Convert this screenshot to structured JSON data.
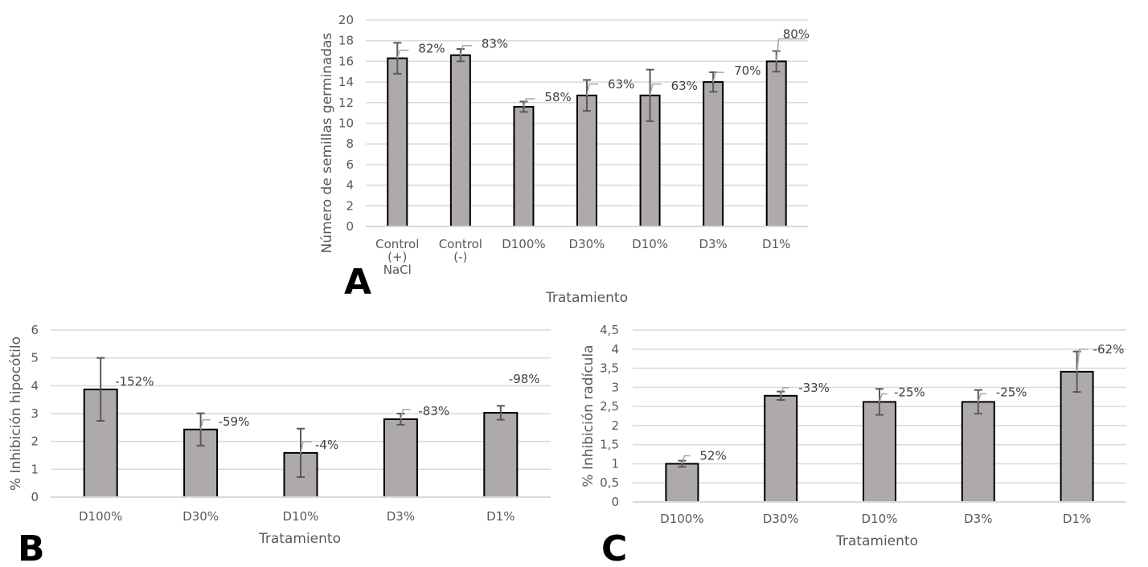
{
  "chart_data": [
    {
      "panel": "A",
      "type": "bar",
      "title": "",
      "xlabel": "Tratamiento",
      "ylabel": "Número de semillas germinadas",
      "categories": [
        [
          "Control",
          "(+)",
          "NaCl"
        ],
        [
          "Control",
          "(-)"
        ],
        [
          "D100%"
        ],
        [
          "D30%"
        ],
        [
          "D10%"
        ],
        [
          "D3%"
        ],
        [
          "D1%"
        ]
      ],
      "values": [
        16.3,
        16.6,
        11.6,
        12.7,
        12.7,
        14.0,
        16.0
      ],
      "errors": [
        1.5,
        0.6,
        0.5,
        1.5,
        2.5,
        0.95,
        1.0
      ],
      "data_labels": [
        "82%",
        "83%",
        "58%",
        "63%",
        "63%",
        "70%",
        "80%"
      ],
      "ylim": [
        0,
        20
      ],
      "yticks": [
        "0",
        "2",
        "4",
        "6",
        "8",
        "10",
        "12",
        "14",
        "16",
        "18",
        "20"
      ],
      "ytick_values": [
        0,
        2,
        4,
        6,
        8,
        10,
        12,
        14,
        16,
        18,
        20
      ],
      "grid": true,
      "bar_color": "#aeaaaa"
    },
    {
      "panel": "B",
      "type": "bar",
      "title": "",
      "xlabel": "Tratamiento",
      "ylabel": "% Inhibición hipocótilo",
      "categories": [
        [
          "D100%"
        ],
        [
          "D30%"
        ],
        [
          "D10%"
        ],
        [
          "D3%"
        ],
        [
          "D1%"
        ]
      ],
      "values": [
        3.87,
        2.43,
        1.59,
        2.8,
        3.03
      ],
      "errors": [
        1.13,
        0.58,
        0.87,
        0.2,
        0.25
      ],
      "data_labels": [
        "-152%",
        "-59%",
        "-4%",
        "-83%",
        "-98%"
      ],
      "ylim": [
        0,
        6
      ],
      "yticks": [
        "0",
        "1",
        "2",
        "3",
        "4",
        "5",
        "6"
      ],
      "ytick_values": [
        0,
        1,
        2,
        3,
        4,
        5,
        6
      ],
      "grid": true,
      "bar_color": "#aeaaaa"
    },
    {
      "panel": "C",
      "type": "bar",
      "title": "",
      "xlabel": "Tratamiento",
      "ylabel": "% Inhibición radícula",
      "categories": [
        [
          "D100%"
        ],
        [
          "D30%"
        ],
        [
          "D10%"
        ],
        [
          "D3%"
        ],
        [
          "D1%"
        ]
      ],
      "values": [
        1.0,
        2.78,
        2.62,
        2.62,
        3.41
      ],
      "errors": [
        0.08,
        0.11,
        0.34,
        0.31,
        0.53
      ],
      "data_labels": [
        "52%",
        "-33%",
        "-25%",
        "-25%",
        "-62%"
      ],
      "ylim": [
        0,
        4.5
      ],
      "yticks": [
        "0",
        "0,5",
        "1",
        "1,5",
        "2",
        "2,5",
        "3",
        "3,5",
        "4",
        "4,5"
      ],
      "ytick_values": [
        0,
        0.5,
        1,
        1.5,
        2,
        2.5,
        3,
        3.5,
        4,
        4.5
      ],
      "grid": true,
      "bar_color": "#aeaaaa"
    }
  ]
}
